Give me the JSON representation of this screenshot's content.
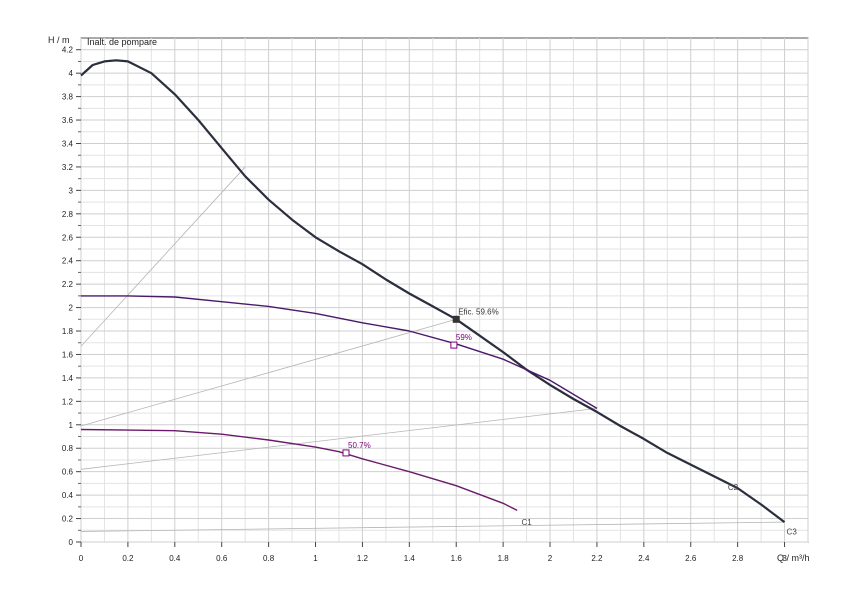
{
  "chart_data": {
    "type": "line",
    "title": "Inalt. de pompare",
    "ylabel": "H / m",
    "xlabel": "Q / m³/h",
    "xlim": [
      0,
      3.1
    ],
    "ylim": [
      0,
      4.3
    ],
    "grid": true,
    "x_ticks": [
      "0",
      "0.2",
      "0.4",
      "0.6",
      "0.8",
      "1",
      "1.2",
      "1.4",
      "1.6",
      "1.8",
      "2",
      "2.2",
      "2.4",
      "2.6",
      "2.8",
      "3"
    ],
    "y_ticks": [
      "0",
      "0.2",
      "0.4",
      "0.6",
      "0.8",
      "1",
      "1.2",
      "1.4",
      "1.6",
      "1.8",
      "2",
      "2.2",
      "2.4",
      "2.6",
      "2.8",
      "3",
      "3.2",
      "3.4",
      "3.6",
      "3.8",
      "4",
      "4.2"
    ],
    "series": [
      {
        "name": "C3",
        "color": "#2b2f3d",
        "points": [
          [
            0,
            3.98
          ],
          [
            0.05,
            4.07
          ],
          [
            0.1,
            4.1
          ],
          [
            0.15,
            4.11
          ],
          [
            0.2,
            4.1
          ],
          [
            0.3,
            4.0
          ],
          [
            0.4,
            3.82
          ],
          [
            0.5,
            3.6
          ],
          [
            0.6,
            3.36
          ],
          [
            0.7,
            3.12
          ],
          [
            0.8,
            2.92
          ],
          [
            0.9,
            2.75
          ],
          [
            1.0,
            2.6
          ],
          [
            1.1,
            2.48
          ],
          [
            1.2,
            2.37
          ],
          [
            1.3,
            2.24
          ],
          [
            1.4,
            2.12
          ],
          [
            1.5,
            2.01
          ],
          [
            1.6,
            1.9
          ],
          [
            1.7,
            1.76
          ],
          [
            1.8,
            1.62
          ],
          [
            1.9,
            1.47
          ],
          [
            2.0,
            1.34
          ],
          [
            2.1,
            1.22
          ],
          [
            2.2,
            1.11
          ],
          [
            2.3,
            0.99
          ],
          [
            2.4,
            0.88
          ],
          [
            2.5,
            0.76
          ],
          [
            2.6,
            0.66
          ],
          [
            2.7,
            0.56
          ],
          [
            2.8,
            0.46
          ],
          [
            2.9,
            0.32
          ],
          [
            3.0,
            0.17
          ]
        ]
      },
      {
        "name": "C2",
        "color": "#4a1a6a",
        "points": [
          [
            0,
            2.1
          ],
          [
            0.2,
            2.1
          ],
          [
            0.4,
            2.09
          ],
          [
            0.6,
            2.05
          ],
          [
            0.8,
            2.01
          ],
          [
            1.0,
            1.95
          ],
          [
            1.2,
            1.87
          ],
          [
            1.4,
            1.8
          ],
          [
            1.6,
            1.69
          ],
          [
            1.8,
            1.56
          ],
          [
            2.0,
            1.38
          ],
          [
            2.2,
            1.14
          ]
        ]
      },
      {
        "name": "C1",
        "color": "#6a1a6a",
        "points": [
          [
            0,
            0.96
          ],
          [
            0.4,
            0.95
          ],
          [
            0.6,
            0.92
          ],
          [
            0.8,
            0.87
          ],
          [
            1.0,
            0.81
          ],
          [
            1.1,
            0.77
          ],
          [
            1.2,
            0.71
          ],
          [
            1.4,
            0.6
          ],
          [
            1.6,
            0.48
          ],
          [
            1.8,
            0.33
          ],
          [
            1.86,
            0.27
          ]
        ]
      }
    ],
    "construction_lines": [
      {
        "from": [
          0,
          1.67
        ],
        "to": [
          0.7,
          3.2
        ]
      },
      {
        "from": [
          0,
          0.99
        ],
        "to": [
          1.6,
          1.9
        ]
      },
      {
        "from": [
          0,
          0.62
        ],
        "to": [
          2.2,
          1.14
        ]
      },
      {
        "from": [
          0,
          0.09
        ],
        "to": [
          3.0,
          0.17
        ]
      }
    ],
    "annotations": [
      {
        "text": "Efic. 59.6%",
        "x": 1.6,
        "y": 1.9,
        "color": "#333333",
        "marker": "filled-square"
      },
      {
        "text": "59%",
        "x": 1.59,
        "y": 1.68,
        "color": "#800080",
        "marker": "open-square"
      },
      {
        "text": "50.7%",
        "x": 1.13,
        "y": 0.76,
        "color": "#800080",
        "marker": "open-square"
      }
    ],
    "curve_labels": [
      {
        "text": "C1",
        "x": 1.87,
        "y": 0.17
      },
      {
        "text": "C2",
        "x": 2.75,
        "y": 0.47
      },
      {
        "text": "C3",
        "x": 3.0,
        "y": 0.09
      }
    ]
  }
}
